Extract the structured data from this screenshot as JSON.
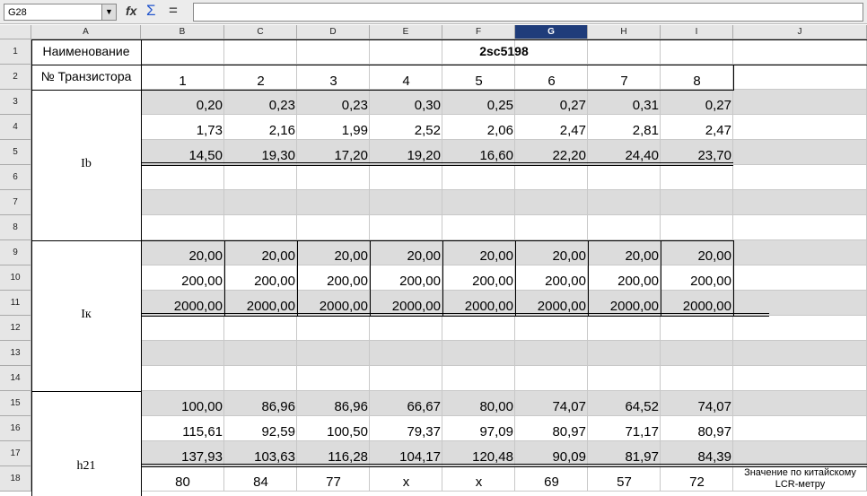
{
  "toolbar": {
    "name_box": "G28",
    "icons": [
      "fx",
      "Σ",
      "="
    ]
  },
  "column_headers": [
    "A",
    "B",
    "C",
    "D",
    "E",
    "F",
    "G",
    "H",
    "I",
    "J"
  ],
  "selected_column": "G",
  "row_headers": [
    "1",
    "2",
    "3",
    "4",
    "5",
    "6",
    "7",
    "8",
    "9",
    "10",
    "11",
    "12",
    "13",
    "14",
    "15",
    "16",
    "17",
    "18"
  ],
  "header": {
    "name_label": "Наименование",
    "title": "2sc5198",
    "number_label": "№ Транзистора",
    "transistors": [
      "1",
      "2",
      "3",
      "4",
      "5",
      "6",
      "7",
      "8"
    ]
  },
  "groups": [
    {
      "label": "Ib",
      "rows": [
        [
          "0,20",
          "0,23",
          "0,23",
          "0,30",
          "0,25",
          "0,27",
          "0,31",
          "0,27"
        ],
        [
          "1,73",
          "2,16",
          "1,99",
          "2,52",
          "2,06",
          "2,47",
          "2,81",
          "2,47"
        ],
        [
          "14,50",
          "19,30",
          "17,20",
          "19,20",
          "16,60",
          "22,20",
          "24,40",
          "23,70"
        ]
      ]
    },
    {
      "label": "Iк",
      "rows": [
        [
          "20,00",
          "20,00",
          "20,00",
          "20,00",
          "20,00",
          "20,00",
          "20,00",
          "20,00"
        ],
        [
          "200,00",
          "200,00",
          "200,00",
          "200,00",
          "200,00",
          "200,00",
          "200,00",
          "200,00"
        ],
        [
          "2000,00",
          "2000,00",
          "2000,00",
          "2000,00",
          "2000,00",
          "2000,00",
          "2000,00",
          "2000,00"
        ]
      ]
    },
    {
      "label": "h21",
      "rows": [
        [
          "100,00",
          "86,96",
          "86,96",
          "66,67",
          "80,00",
          "74,07",
          "64,52",
          "74,07"
        ],
        [
          "115,61",
          "92,59",
          "100,50",
          "79,37",
          "97,09",
          "80,97",
          "71,17",
          "80,97"
        ],
        [
          "137,93",
          "103,63",
          "116,28",
          "104,17",
          "120,48",
          "90,09",
          "81,97",
          "84,39"
        ]
      ],
      "lcr_row": [
        "80",
        "84",
        "77",
        "x",
        "x",
        "69",
        "57",
        "72"
      ],
      "note": "Значение по китайскому LCR-метру"
    }
  ]
}
